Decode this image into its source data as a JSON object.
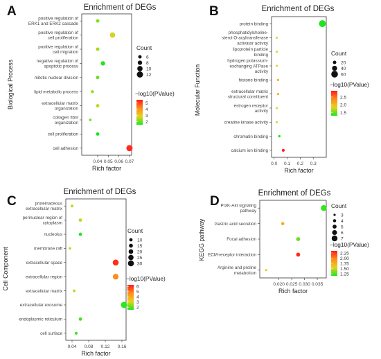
{
  "chart_data": [
    {
      "letter": "A",
      "type": "scatter",
      "title": "Enrichment of DEGs",
      "xlabel": "Rich factor",
      "ylabel": "Biological Process",
      "xlim": [
        0.025,
        0.072
      ],
      "xticks": [
        "0.04",
        "0.05",
        "0.06",
        "0.07"
      ],
      "xtick_values": [
        0.04,
        0.05,
        0.06,
        0.07
      ],
      "categories": [
        [
          "positive regulation of",
          "ERK1 and ERK2 cascade"
        ],
        [
          "positive regulation of",
          "cell proliferation"
        ],
        [
          "positive regulation of",
          "cell migration"
        ],
        [
          "negative regulation of",
          "apoptotic process"
        ],
        [
          "mitotic nuclear division"
        ],
        [
          "lipid metabolic process"
        ],
        [
          "extracellular matrix",
          "organization"
        ],
        [
          "collagen fibril",
          "organization"
        ],
        [
          "cell proliferation"
        ],
        [
          "cell adhesion"
        ]
      ],
      "points": [
        {
          "x": 0.04,
          "count": 6,
          "pvalue": 2.2
        },
        {
          "x": 0.054,
          "count": 10,
          "pvalue": 2.7
        },
        {
          "x": 0.04,
          "count": 6,
          "pvalue": 2.4
        },
        {
          "x": 0.045,
          "count": 8,
          "pvalue": 1.5
        },
        {
          "x": 0.04,
          "count": 6,
          "pvalue": 2.0
        },
        {
          "x": 0.035,
          "count": 5,
          "pvalue": 2.3
        },
        {
          "x": 0.04,
          "count": 6,
          "pvalue": 2.6
        },
        {
          "x": 0.033,
          "count": 4,
          "pvalue": 2.0
        },
        {
          "x": 0.04,
          "count": 6,
          "pvalue": 1.5
        },
        {
          "x": 0.07,
          "count": 12,
          "pvalue": 5.3
        }
      ],
      "size_legend": {
        "title": "Count",
        "values": [
          6,
          8,
          10,
          12
        ]
      },
      "color_legend": {
        "title": "−log10(PValue)",
        "ticks": [
          "5",
          "4",
          "3",
          "2"
        ],
        "tick_values": [
          5,
          4,
          3,
          2
        ],
        "range": [
          1.5,
          5.5
        ],
        "colors": [
          "#ff1a1a",
          "#ff8c1a",
          "#e6d21e",
          "#1ee61e"
        ]
      }
    },
    {
      "letter": "B",
      "type": "scatter",
      "title": "Enrichment of DEGs",
      "xlabel": "Rich factor",
      "ylabel": "Molecular Function",
      "xlim": [
        -0.02,
        0.4
      ],
      "xticks": [
        "0.0",
        "0.1",
        "0.2",
        "0.3"
      ],
      "xtick_values": [
        0.0,
        0.1,
        0.2,
        0.3
      ],
      "categories": [
        [
          "protein binding"
        ],
        [
          "phosphatidylcholine-",
          "sterol O-acyltransferase",
          "activator activity"
        ],
        [
          "lipoprotein particle",
          "binding"
        ],
        [
          "hydrogen:potassium-",
          "exchanging ATPase",
          "activity"
        ],
        [
          "histone binding"
        ],
        [
          "extracellular matrix",
          "structural constituent"
        ],
        [
          "estrogen receptor",
          "activity"
        ],
        [
          "creatine kinase activity"
        ],
        [
          "chromatin binding"
        ],
        [
          "calcium ion binding"
        ]
      ],
      "points": [
        {
          "x": 0.37,
          "count": 63,
          "pvalue": 1.3
        },
        {
          "x": 0.02,
          "count": 2,
          "pvalue": 1.8
        },
        {
          "x": 0.02,
          "count": 2,
          "pvalue": 1.8
        },
        {
          "x": 0.02,
          "count": 2,
          "pvalue": 1.8
        },
        {
          "x": 0.03,
          "count": 5,
          "pvalue": 2.0
        },
        {
          "x": 0.03,
          "count": 5,
          "pvalue": 2.0
        },
        {
          "x": 0.02,
          "count": 2,
          "pvalue": 1.8
        },
        {
          "x": 0.02,
          "count": 2,
          "pvalue": 1.8
        },
        {
          "x": 0.04,
          "count": 6,
          "pvalue": 1.3
        },
        {
          "x": 0.07,
          "count": 12,
          "pvalue": 2.9
        }
      ],
      "size_legend": {
        "title": "Count",
        "values": [
          20,
          40,
          60
        ]
      },
      "color_legend": {
        "title": "−log10(PValue)",
        "ticks": [
          "2.5",
          "2.0",
          "1.5"
        ],
        "tick_values": [
          2.5,
          2.0,
          1.5
        ],
        "range": [
          1.3,
          2.9
        ],
        "colors": [
          "#ff1a1a",
          "#ff8c1a",
          "#e6d21e",
          "#1ee61e"
        ]
      }
    },
    {
      "letter": "C",
      "type": "scatter",
      "title": "Enrichment of DEGs",
      "xlabel": "Rich factor",
      "ylabel": "Cell Component",
      "xlim": [
        0.025,
        0.17
      ],
      "xticks": [
        "0.04",
        "0.08",
        "0.12",
        "0.16"
      ],
      "xtick_values": [
        0.04,
        0.08,
        0.12,
        0.16
      ],
      "categories": [
        [
          "proteinaceous",
          "extracellular matrix"
        ],
        [
          "perinuclear region of",
          "cytoplasm"
        ],
        [
          "nucleolus"
        ],
        [
          "membrane raft"
        ],
        [
          "extracellular space"
        ],
        [
          "extracellular region"
        ],
        [
          "extracellular matrix"
        ],
        [
          "extracellular exosome"
        ],
        [
          "endoplasmic reticulum"
        ],
        [
          "cell surface"
        ]
      ],
      "points": [
        {
          "x": 0.04,
          "count": 6,
          "pvalue": 2.8
        },
        {
          "x": 0.06,
          "count": 10,
          "pvalue": 2.8
        },
        {
          "x": 0.06,
          "count": 10,
          "pvalue": 1.5
        },
        {
          "x": 0.035,
          "count": 4,
          "pvalue": 2.8
        },
        {
          "x": 0.145,
          "count": 30,
          "pvalue": 6.0
        },
        {
          "x": 0.145,
          "count": 28,
          "pvalue": 4.7
        },
        {
          "x": 0.045,
          "count": 6,
          "pvalue": 2.9
        },
        {
          "x": 0.165,
          "count": 32,
          "pvalue": 1.6
        },
        {
          "x": 0.06,
          "count": 10,
          "pvalue": 1.8
        },
        {
          "x": 0.05,
          "count": 7,
          "pvalue": 1.7
        }
      ],
      "size_legend": {
        "title": "Count",
        "values": [
          10,
          15,
          20,
          25,
          30
        ]
      },
      "color_legend": {
        "title": "−log10(PValue)",
        "ticks": [
          "6",
          "5",
          "4",
          "3",
          "2"
        ],
        "tick_values": [
          6,
          5,
          4,
          3,
          2
        ],
        "range": [
          1.5,
          6.3
        ],
        "colors": [
          "#ff1a1a",
          "#ff8c1a",
          "#e6d21e",
          "#1ee61e"
        ]
      }
    },
    {
      "letter": "D",
      "type": "scatter",
      "title": "Enrichment of DEGs",
      "xlabel": "Rich factor",
      "ylabel": "KEGG pathway",
      "xlim": [
        0.0125,
        0.0385
      ],
      "xticks": [
        "0.020",
        "0.025",
        "0.030",
        "0.035"
      ],
      "xtick_values": [
        0.02,
        0.025,
        0.03,
        0.035
      ],
      "categories": [
        [
          "PI3K-Akt signaling",
          "pathway"
        ],
        [
          "Gastric acid secretion"
        ],
        [
          "Focal adhesion"
        ],
        [
          "ECM-receptor interaction"
        ],
        [
          "Arginine and proline",
          "metabolism"
        ]
      ],
      "points": [
        {
          "x": 0.0375,
          "count": 7,
          "pvalue": 1.2
        },
        {
          "x": 0.0215,
          "count": 4,
          "pvalue": 1.8
        },
        {
          "x": 0.0275,
          "count": 5,
          "pvalue": 1.3
        },
        {
          "x": 0.0275,
          "count": 5,
          "pvalue": 2.3
        },
        {
          "x": 0.015,
          "count": 3,
          "pvalue": 1.6
        }
      ],
      "size_legend": {
        "title": "Count",
        "values": [
          3,
          4,
          5,
          6,
          7
        ]
      },
      "color_legend": {
        "title": "−log10(PValue)",
        "ticks": [
          "2.25",
          "2.00",
          "1.75",
          "1.50",
          "1.25"
        ],
        "tick_values": [
          2.25,
          2.0,
          1.75,
          1.5,
          1.25
        ],
        "range": [
          1.15,
          2.35
        ],
        "colors": [
          "#ff1a1a",
          "#ff8c1a",
          "#e6d21e",
          "#1ee61e"
        ]
      }
    }
  ]
}
